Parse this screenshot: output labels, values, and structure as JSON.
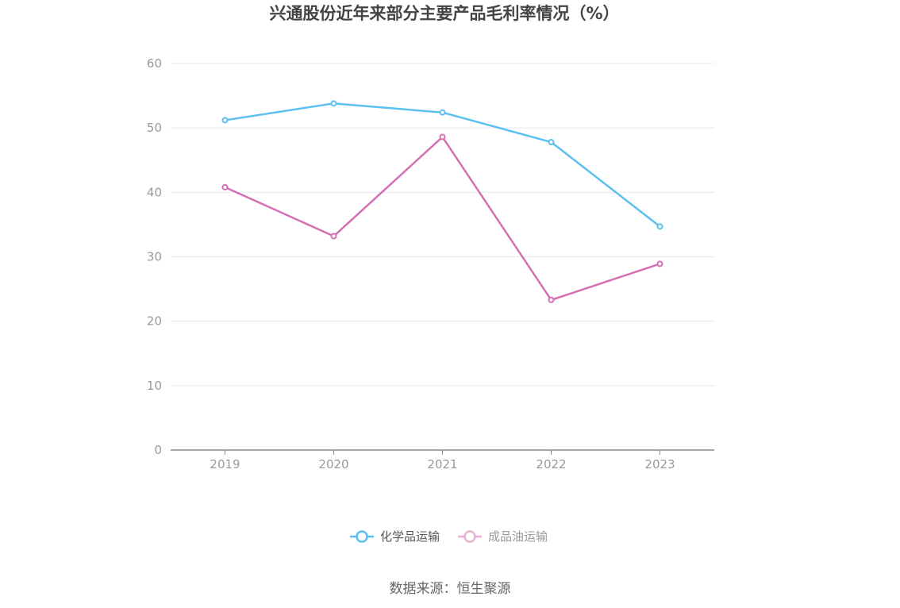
{
  "chart_data": {
    "type": "line",
    "title": "兴通股份近年来部分主要产品毛利率情况（%）",
    "categories": [
      "2019",
      "2020",
      "2021",
      "2022",
      "2023"
    ],
    "ylim": [
      0,
      60
    ],
    "yticks": [
      "0",
      "10",
      "20",
      "30",
      "40",
      "50",
      "60"
    ],
    "grid": true,
    "legend_position": "bottom",
    "series": [
      {
        "name": "化学品运输",
        "color": "#5bc0f0",
        "values": [
          51.2,
          53.8,
          52.4,
          47.8,
          34.7
        ]
      },
      {
        "name": "成品油运输",
        "color": "#d46fb4",
        "values": [
          40.8,
          33.2,
          48.6,
          23.3,
          28.9
        ]
      }
    ],
    "source": "数据来源：恒生聚源"
  }
}
